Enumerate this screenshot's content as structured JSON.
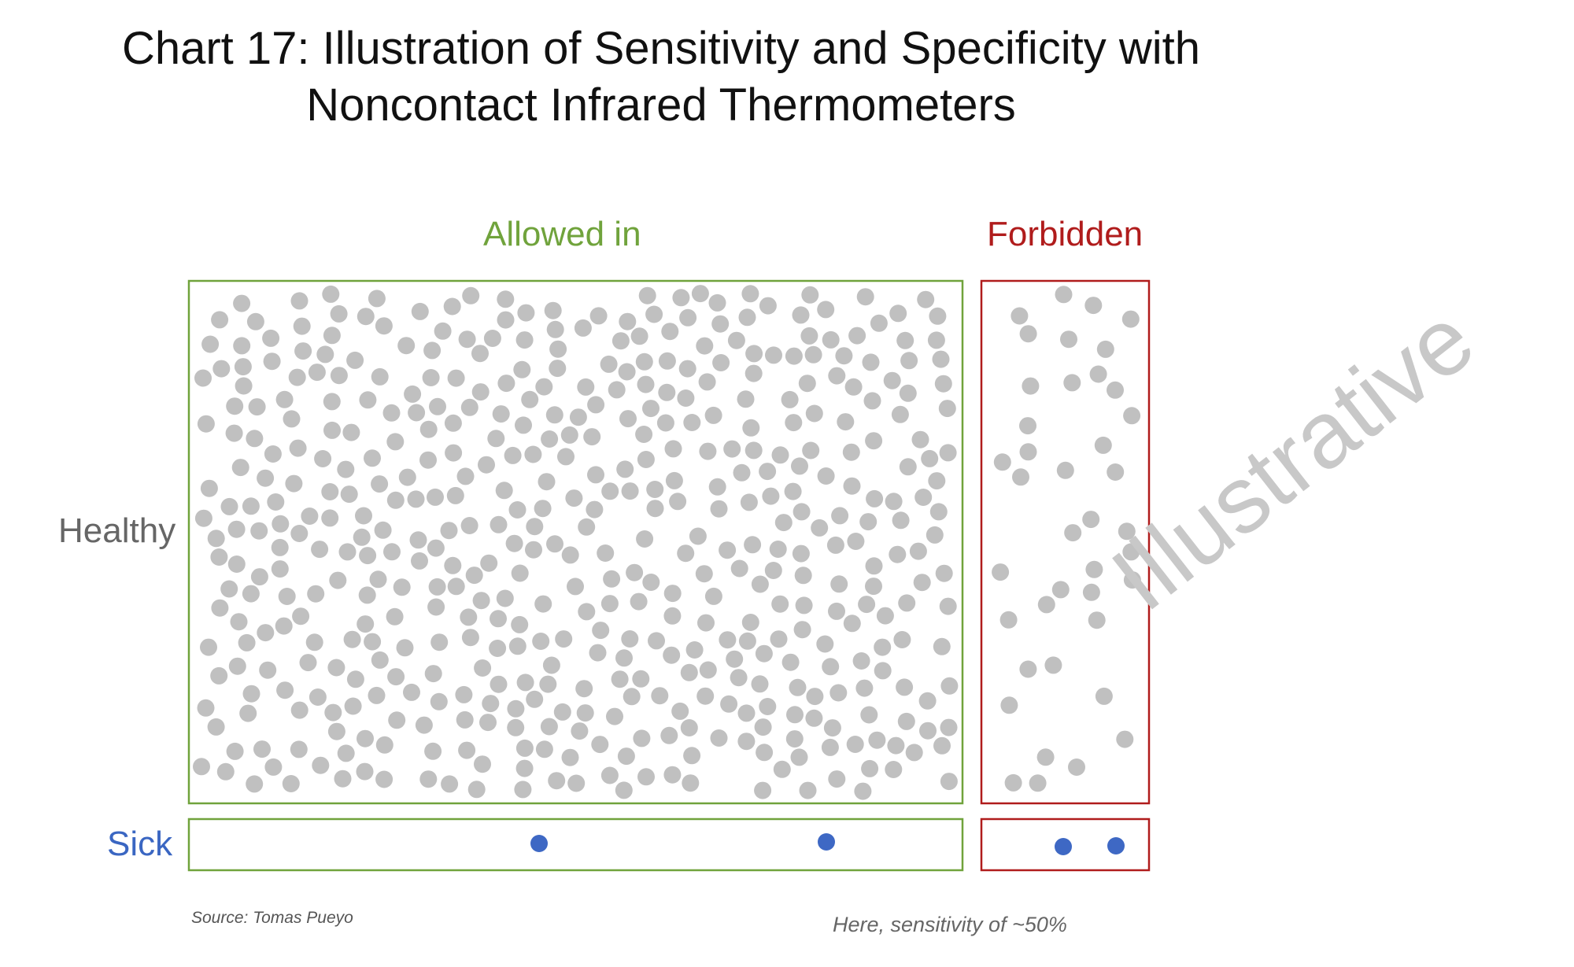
{
  "title": {
    "line1": "Chart 17: Illustration of Sensitivity and Specificity with",
    "line2": "Noncontact Infrared Thermometers"
  },
  "columns": {
    "allowed": "Allowed in",
    "forbidden": "Forbidden"
  },
  "rows": {
    "healthy": "Healthy",
    "sick": "Sick"
  },
  "counts": {
    "allowed_healthy": 490,
    "forbidden_healthy": 40,
    "allowed_sick": 2,
    "forbidden_sick": 2
  },
  "colors": {
    "allowed": "#70a33c",
    "forbidden": "#b01c1c",
    "healthy_dot": "#c0c0c0",
    "sick_dot": "#3e68c4",
    "healthy_label": "#666666",
    "sick_label": "#3a66c2"
  },
  "source": "Source: Tomas Pueyo",
  "note": "Here, sensitivity of ~50%",
  "watermark": "Illustrative"
}
